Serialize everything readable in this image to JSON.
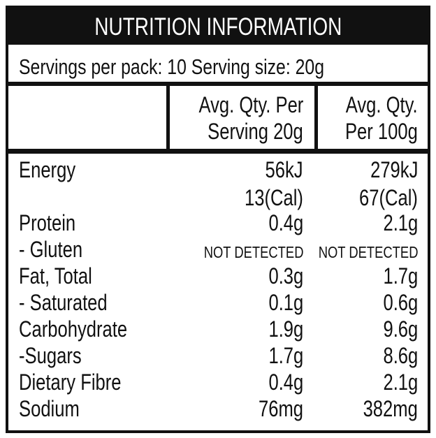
{
  "header": {
    "title": "NUTRITION INFORMATION",
    "servings": "Servings per pack: 10 Serving size: 20g"
  },
  "table": {
    "columns": [
      [
        "Avg. Qty. Per",
        "Serving 20g"
      ],
      [
        "Avg. Qty.",
        "Per 100g"
      ]
    ],
    "rows": [
      {
        "label": "Energy",
        "serving": [
          "56kJ",
          "13(Cal)"
        ],
        "per100g": [
          "279kJ",
          "67(Cal)"
        ]
      },
      {
        "label": "Protein",
        "serving": "0.4g",
        "per100g": "2.1g"
      },
      {
        "label": "- Gluten",
        "serving": "NOT DETECTED",
        "per100g": "NOT DETECTED"
      },
      {
        "label": "Fat, Total",
        "serving": "0.3g",
        "per100g": "1.7g"
      },
      {
        "label": "- Saturated",
        "serving": "0.1g",
        "per100g": "0.6g"
      },
      {
        "label": "Carbohydrate",
        "serving": "1.9g",
        "per100g": "9.6g"
      },
      {
        "label": "-Sugars",
        "serving": "1.7g",
        "per100g": "8.6g"
      },
      {
        "label": "Dietary Fibre",
        "serving": "0.4g",
        "per100g": "2.1g"
      },
      {
        "label": "Sodium",
        "serving": "76mg",
        "per100g": "382mg"
      }
    ]
  }
}
